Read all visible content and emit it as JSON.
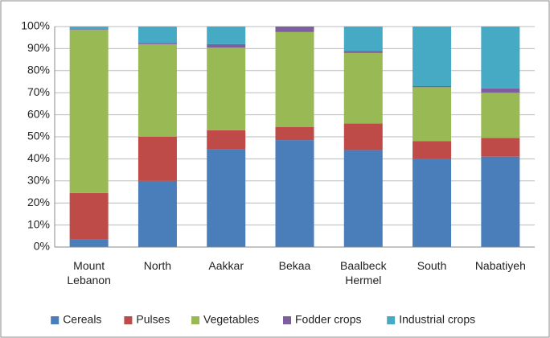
{
  "chart_data": {
    "type": "stacked_bar",
    "categories": [
      "Mount Lebanon",
      "North",
      "Aakkar",
      "Bekaa",
      "Baalbeck Hermel",
      "South",
      "Nabatiyeh"
    ],
    "series": [
      {
        "name": "Cereals",
        "color": "#4a7ebb",
        "values": [
          3.5,
          30,
          44.5,
          48.5,
          44,
          40,
          41
        ]
      },
      {
        "name": "Pulses",
        "color": "#be4b48",
        "values": [
          21,
          20,
          8.5,
          6,
          12,
          8,
          8.5
        ]
      },
      {
        "name": "Vegetables",
        "color": "#98b954",
        "values": [
          74,
          42,
          37.5,
          43,
          32,
          24.5,
          20.5
        ]
      },
      {
        "name": "Fodder crops",
        "color": "#7d5fa0",
        "values": [
          0.3,
          0.5,
          1.5,
          2.5,
          1,
          0.5,
          2
        ]
      },
      {
        "name": "Industrial crops",
        "color": "#46aac5",
        "values": [
          1.2,
          7.5,
          8,
          0,
          11,
          27,
          28
        ]
      }
    ],
    "ylim": [
      0,
      100
    ],
    "yticks": [
      {
        "value": 0,
        "label": "0%"
      },
      {
        "value": 10,
        "label": "10%"
      },
      {
        "value": 20,
        "label": "20%"
      },
      {
        "value": 30,
        "label": "30%"
      },
      {
        "value": 40,
        "label": "40%"
      },
      {
        "value": 50,
        "label": "50%"
      },
      {
        "value": 60,
        "label": "60%"
      },
      {
        "value": 70,
        "label": "70%"
      },
      {
        "value": 80,
        "label": "80%"
      },
      {
        "value": 90,
        "label": "90%"
      },
      {
        "value": 100,
        "label": "100%"
      }
    ],
    "grid": true,
    "legend": "bottom"
  }
}
